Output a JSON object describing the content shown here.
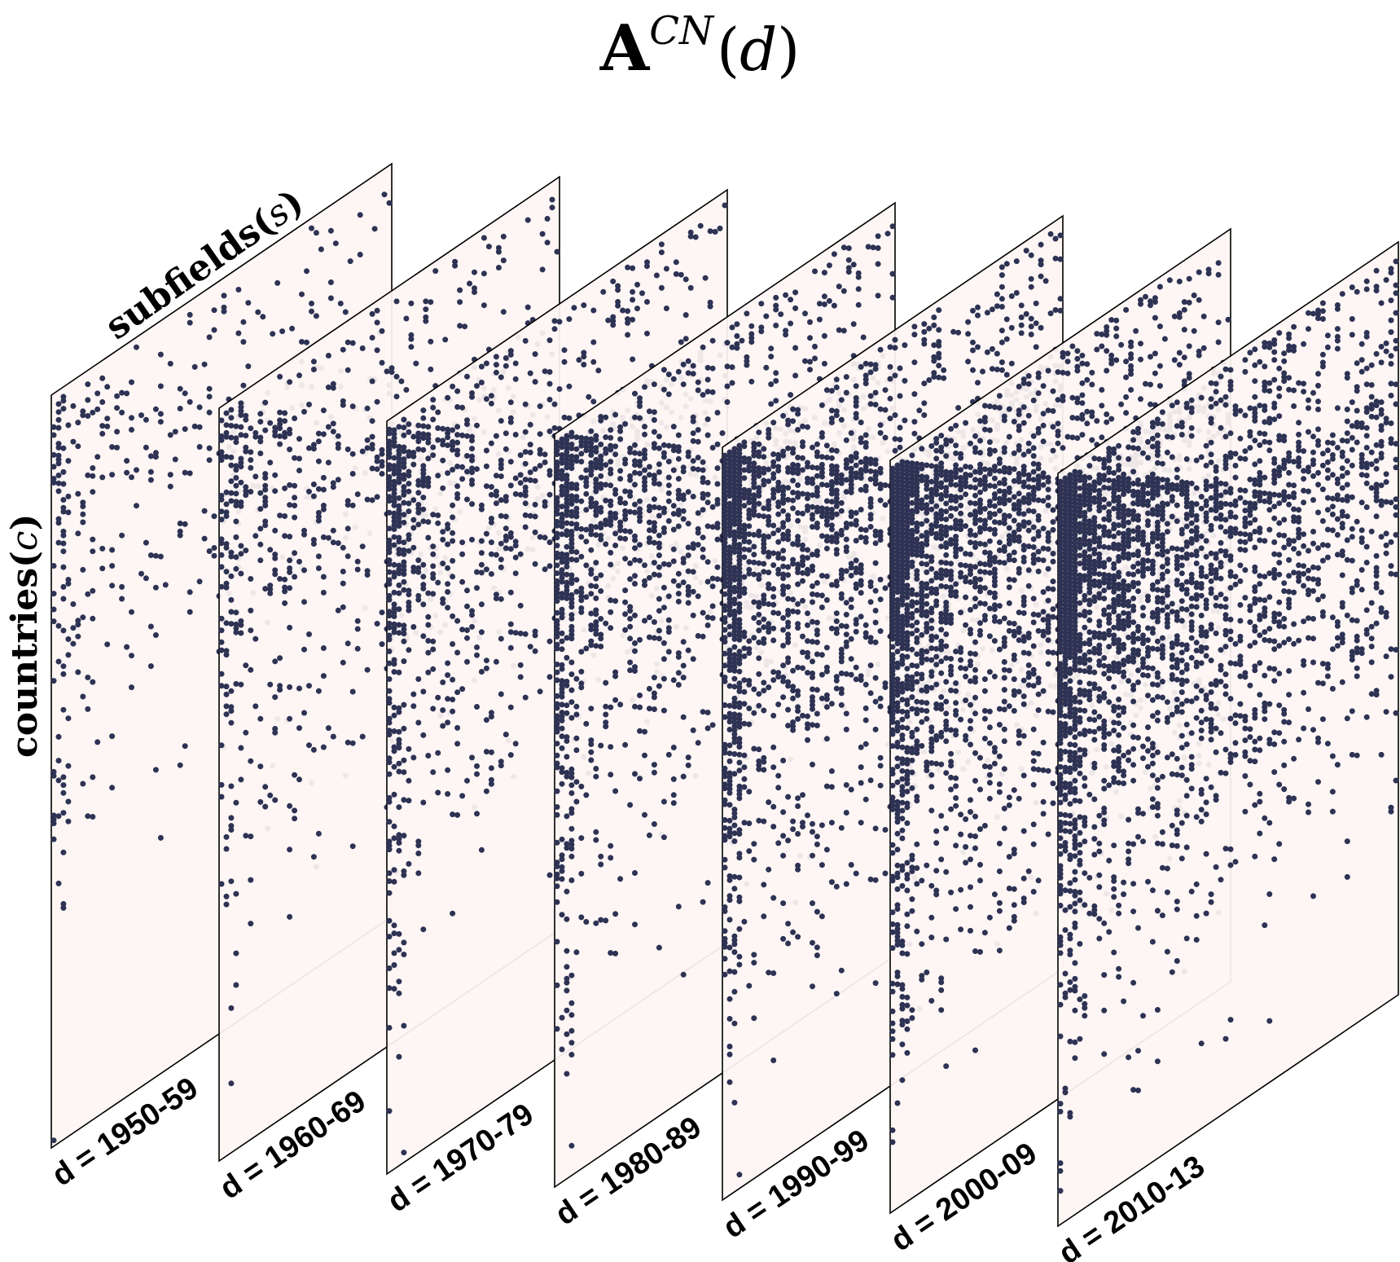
{
  "title": {
    "symbol": "A",
    "superscript": "CN",
    "argument": "d"
  },
  "axes": {
    "subfields_label": "subfields",
    "subfields_var": "s",
    "countries_label": "countries",
    "countries_var": "c"
  },
  "colors": {
    "panel_fill": "#fdf5f3",
    "panel_edge": "#000000",
    "dot": "#2e3354",
    "dot_highlight": "#d9d7e0"
  },
  "panels": [
    {
      "label": "d = 1950-59",
      "density": 0.13
    },
    {
      "label": "d = 1960-69",
      "density": 0.22
    },
    {
      "label": "d = 1970-79",
      "density": 0.32
    },
    {
      "label": "d = 1980-89",
      "density": 0.4
    },
    {
      "label": "d = 1990-99",
      "density": 0.5
    },
    {
      "label": "d = 2000-09",
      "density": 0.6
    },
    {
      "label": "d = 2010-13",
      "density": 0.66
    }
  ]
}
